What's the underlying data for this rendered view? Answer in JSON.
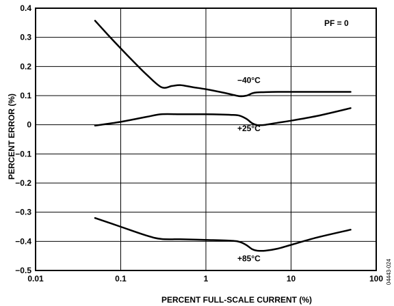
{
  "chart_data": {
    "type": "line",
    "xscale": "log",
    "xlim": [
      0.01,
      100
    ],
    "ylim": [
      -0.5,
      0.4
    ],
    "xlabel": "PERCENT FULL-SCALE CURRENT (%)",
    "ylabel": "PERCENT ERROR (%)",
    "x_ticks": [
      0.01,
      0.1,
      1,
      10,
      100
    ],
    "x_tick_labels": [
      "0.01",
      "0.1",
      "1",
      "10",
      "100"
    ],
    "y_ticks": [
      0.4,
      0.3,
      0.2,
      0.1,
      0,
      -0.1,
      -0.2,
      -0.3,
      -0.4,
      -0.5
    ],
    "y_tick_labels": [
      "0.4",
      "0.3",
      "0.2",
      "0.1",
      "0",
      "−0.1",
      "−0.2",
      "−0.3",
      "−0.4",
      "−0.5"
    ],
    "grid": true,
    "annotation": "PF = 0",
    "figure_id": "04443-024",
    "series": [
      {
        "name": "−40°C",
        "x": [
          0.05,
          0.07,
          0.1,
          0.15,
          0.2,
          0.3,
          0.4,
          0.5,
          0.7,
          1,
          1.5,
          2,
          2.5,
          3,
          3.5,
          4,
          5,
          7,
          10,
          20,
          50
        ],
        "y": [
          0.357,
          0.31,
          0.262,
          0.209,
          0.173,
          0.129,
          0.133,
          0.136,
          0.129,
          0.122,
          0.112,
          0.104,
          0.098,
          0.1,
          0.108,
          0.111,
          0.112,
          0.113,
          0.113,
          0.113,
          0.113
        ]
      },
      {
        "name": "+25°C",
        "x": [
          0.05,
          0.1,
          0.2,
          0.3,
          0.5,
          1,
          2,
          2.5,
          3,
          3.5,
          4,
          5,
          7,
          10,
          20,
          50
        ],
        "y": [
          -0.003,
          0.01,
          0.027,
          0.036,
          0.036,
          0.036,
          0.034,
          0.031,
          0.02,
          0.005,
          -0.001,
          0.0,
          0.007,
          0.014,
          0.03,
          0.057
        ]
      },
      {
        "name": "+85°C",
        "x": [
          0.05,
          0.1,
          0.2,
          0.3,
          0.5,
          1,
          2,
          2.5,
          3,
          3.5,
          4,
          5,
          7,
          10,
          20,
          50
        ],
        "y": [
          -0.32,
          -0.35,
          -0.38,
          -0.392,
          -0.393,
          -0.395,
          -0.398,
          -0.402,
          -0.413,
          -0.427,
          -0.432,
          -0.432,
          -0.425,
          -0.412,
          -0.387,
          -0.36
        ]
      }
    ],
    "series_labels": [
      {
        "text": "−40°C",
        "x": 3.2,
        "y": 0.143
      },
      {
        "text": "+25°C",
        "x": 3.2,
        "y": -0.022
      },
      {
        "text": "+85°C",
        "x": 3.2,
        "y": -0.468
      }
    ]
  }
}
